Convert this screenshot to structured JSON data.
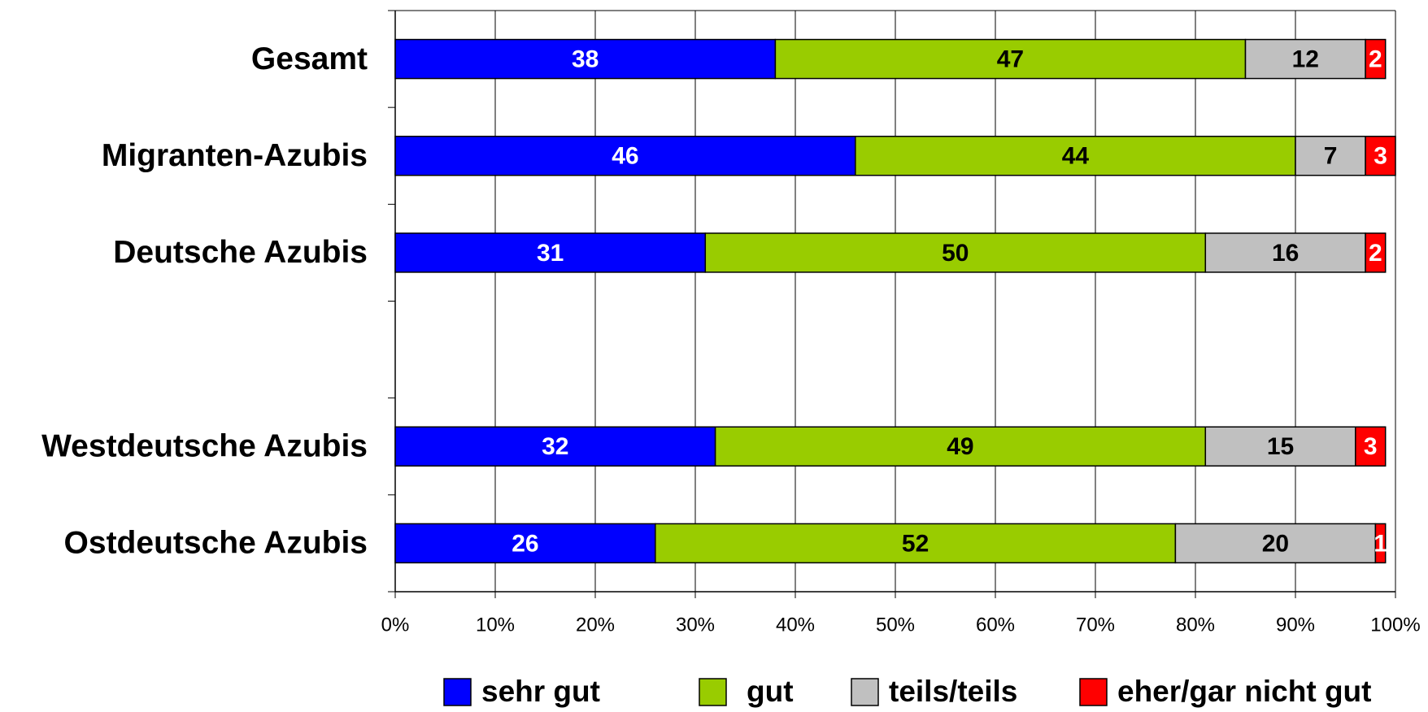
{
  "chart_data": {
    "type": "stacked-bar-horizontal",
    "categories": [
      "Gesamt",
      "Migranten-Azubis",
      "Deutsche Azubis",
      null,
      "Westdeutsche Azubis",
      "Ostdeutsche Azubis"
    ],
    "series": [
      {
        "name": "sehr gut",
        "color": "#0000ff",
        "label_color": "#ffffff",
        "values": [
          38,
          46,
          31,
          null,
          32,
          26
        ]
      },
      {
        "name": "gut",
        "color": "#99cc00",
        "label_color": "#000000",
        "values": [
          47,
          44,
          50,
          null,
          49,
          52
        ]
      },
      {
        "name": "teils/teils",
        "color": "#c0c0c0",
        "label_color": "#000000",
        "values": [
          12,
          7,
          16,
          null,
          15,
          20
        ]
      },
      {
        "name": "eher/gar nicht gut",
        "color": "#ff0000",
        "label_color": "#ffffff",
        "values": [
          2,
          3,
          2,
          null,
          3,
          1
        ]
      }
    ],
    "xlim": [
      0,
      100
    ],
    "xticks": [
      {
        "value": 0,
        "label": "0%"
      },
      {
        "value": 10,
        "label": "10%"
      },
      {
        "value": 20,
        "label": "20%"
      },
      {
        "value": 30,
        "label": "30%"
      },
      {
        "value": 40,
        "label": "40%"
      },
      {
        "value": 50,
        "label": "50%"
      },
      {
        "value": 60,
        "label": "60%"
      },
      {
        "value": 70,
        "label": "70%"
      },
      {
        "value": 80,
        "label": "80%"
      },
      {
        "value": 90,
        "label": "90%"
      },
      {
        "value": 100,
        "label": "100%"
      }
    ],
    "grid": true,
    "legend": "bottom"
  }
}
